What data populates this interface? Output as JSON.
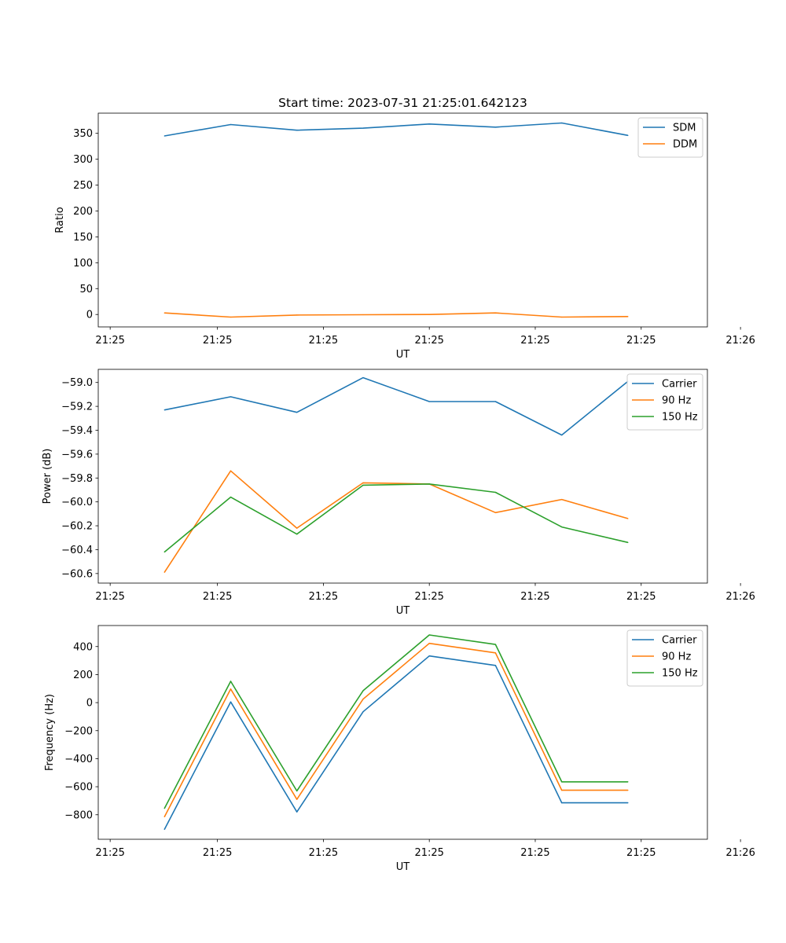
{
  "figure_title": "Start time: 2023-07-31 21:25:01.642123",
  "colors": {
    "blue": "#1f77b4",
    "orange": "#ff7f0e",
    "green": "#2ca02c"
  },
  "chart_data": [
    {
      "type": "line",
      "id": "ratio",
      "title": "Start time: 2023-07-31 21:25:01.642123",
      "xlabel": "UT",
      "ylabel": "Ratio",
      "x_index": [
        1,
        2,
        3,
        4,
        5,
        6,
        7,
        8
      ],
      "xlim": [
        0,
        9.2
      ],
      "xticks": [
        0.18,
        1.8,
        3.4,
        5.0,
        6.6,
        8.2,
        9.7
      ],
      "xtick_labels": [
        "21:25",
        "21:25",
        "21:25",
        "21:25",
        "21:25",
        "21:25",
        "21:26"
      ],
      "ylim": [
        -24,
        389
      ],
      "yticks": [
        0,
        50,
        100,
        150,
        200,
        250,
        300,
        350
      ],
      "legend_position": "upper-right",
      "series": [
        {
          "name": "SDM",
          "color": "#1f77b4",
          "values": [
            345,
            367,
            356,
            360,
            368,
            362,
            370,
            346
          ]
        },
        {
          "name": "DDM",
          "color": "#ff7f0e",
          "values": [
            3,
            -5,
            -1,
            -0.5,
            0,
            3,
            -5,
            -4
          ]
        }
      ]
    },
    {
      "type": "line",
      "id": "power",
      "title": "",
      "xlabel": "UT",
      "ylabel": "Power (dB)",
      "x_index": [
        1,
        2,
        3,
        4,
        5,
        6,
        7,
        8
      ],
      "xlim": [
        0,
        9.2
      ],
      "xticks": [
        0.18,
        1.8,
        3.4,
        5.0,
        6.6,
        8.2,
        9.7
      ],
      "xtick_labels": [
        "21:25",
        "21:25",
        "21:25",
        "21:25",
        "21:25",
        "21:25",
        "21:26"
      ],
      "ylim": [
        -60.68,
        -58.89
      ],
      "yticks": [
        -60.6,
        -60.4,
        -60.2,
        -60.0,
        -59.8,
        -59.6,
        -59.4,
        -59.2,
        -59.0
      ],
      "ytick_labels": [
        "−60.6",
        "−60.4",
        "−60.2",
        "−60.0",
        "−59.8",
        "−59.6",
        "−59.4",
        "−59.2",
        "−59.0"
      ],
      "legend_position": "upper-right",
      "series": [
        {
          "name": "Carrier",
          "color": "#1f77b4",
          "values": [
            -59.23,
            -59.12,
            -59.25,
            -58.96,
            -59.16,
            -59.16,
            -59.44,
            -58.99
          ]
        },
        {
          "name": "90 Hz",
          "color": "#ff7f0e",
          "values": [
            -60.59,
            -59.74,
            -60.22,
            -59.84,
            -59.85,
            -60.09,
            -59.98,
            -60.14
          ]
        },
        {
          "name": "150 Hz",
          "color": "#2ca02c",
          "values": [
            -60.42,
            -59.96,
            -60.27,
            -59.86,
            -59.85,
            -59.92,
            -60.21,
            -60.34
          ]
        }
      ]
    },
    {
      "type": "line",
      "id": "frequency",
      "title": "",
      "xlabel": "UT",
      "ylabel": "Frequency (Hz)",
      "x_index": [
        1,
        2,
        3,
        4,
        5,
        6,
        7,
        8
      ],
      "xlim": [
        0,
        9.2
      ],
      "xticks": [
        0.18,
        1.8,
        3.4,
        5.0,
        6.6,
        8.2,
        9.7
      ],
      "xtick_labels": [
        "21:25",
        "21:25",
        "21:25",
        "21:25",
        "21:25",
        "21:25",
        "21:26"
      ],
      "ylim": [
        -975,
        550
      ],
      "yticks": [
        -800,
        -600,
        -400,
        -200,
        0,
        200,
        400
      ],
      "ytick_labels": [
        "−800",
        "−600",
        "−400",
        "−200",
        "0",
        "200",
        "400"
      ],
      "legend_position": "upper-right",
      "series": [
        {
          "name": "Carrier",
          "color": "#1f77b4",
          "values": [
            -905,
            5,
            -780,
            -65,
            333,
            265,
            -715,
            -715
          ]
        },
        {
          "name": "90 Hz",
          "color": "#ff7f0e",
          "values": [
            -815,
            97,
            -690,
            25,
            423,
            355,
            -625,
            -625
          ]
        },
        {
          "name": "150 Hz",
          "color": "#2ca02c",
          "values": [
            -755,
            152,
            -630,
            85,
            483,
            415,
            -565,
            -565
          ]
        }
      ]
    }
  ]
}
